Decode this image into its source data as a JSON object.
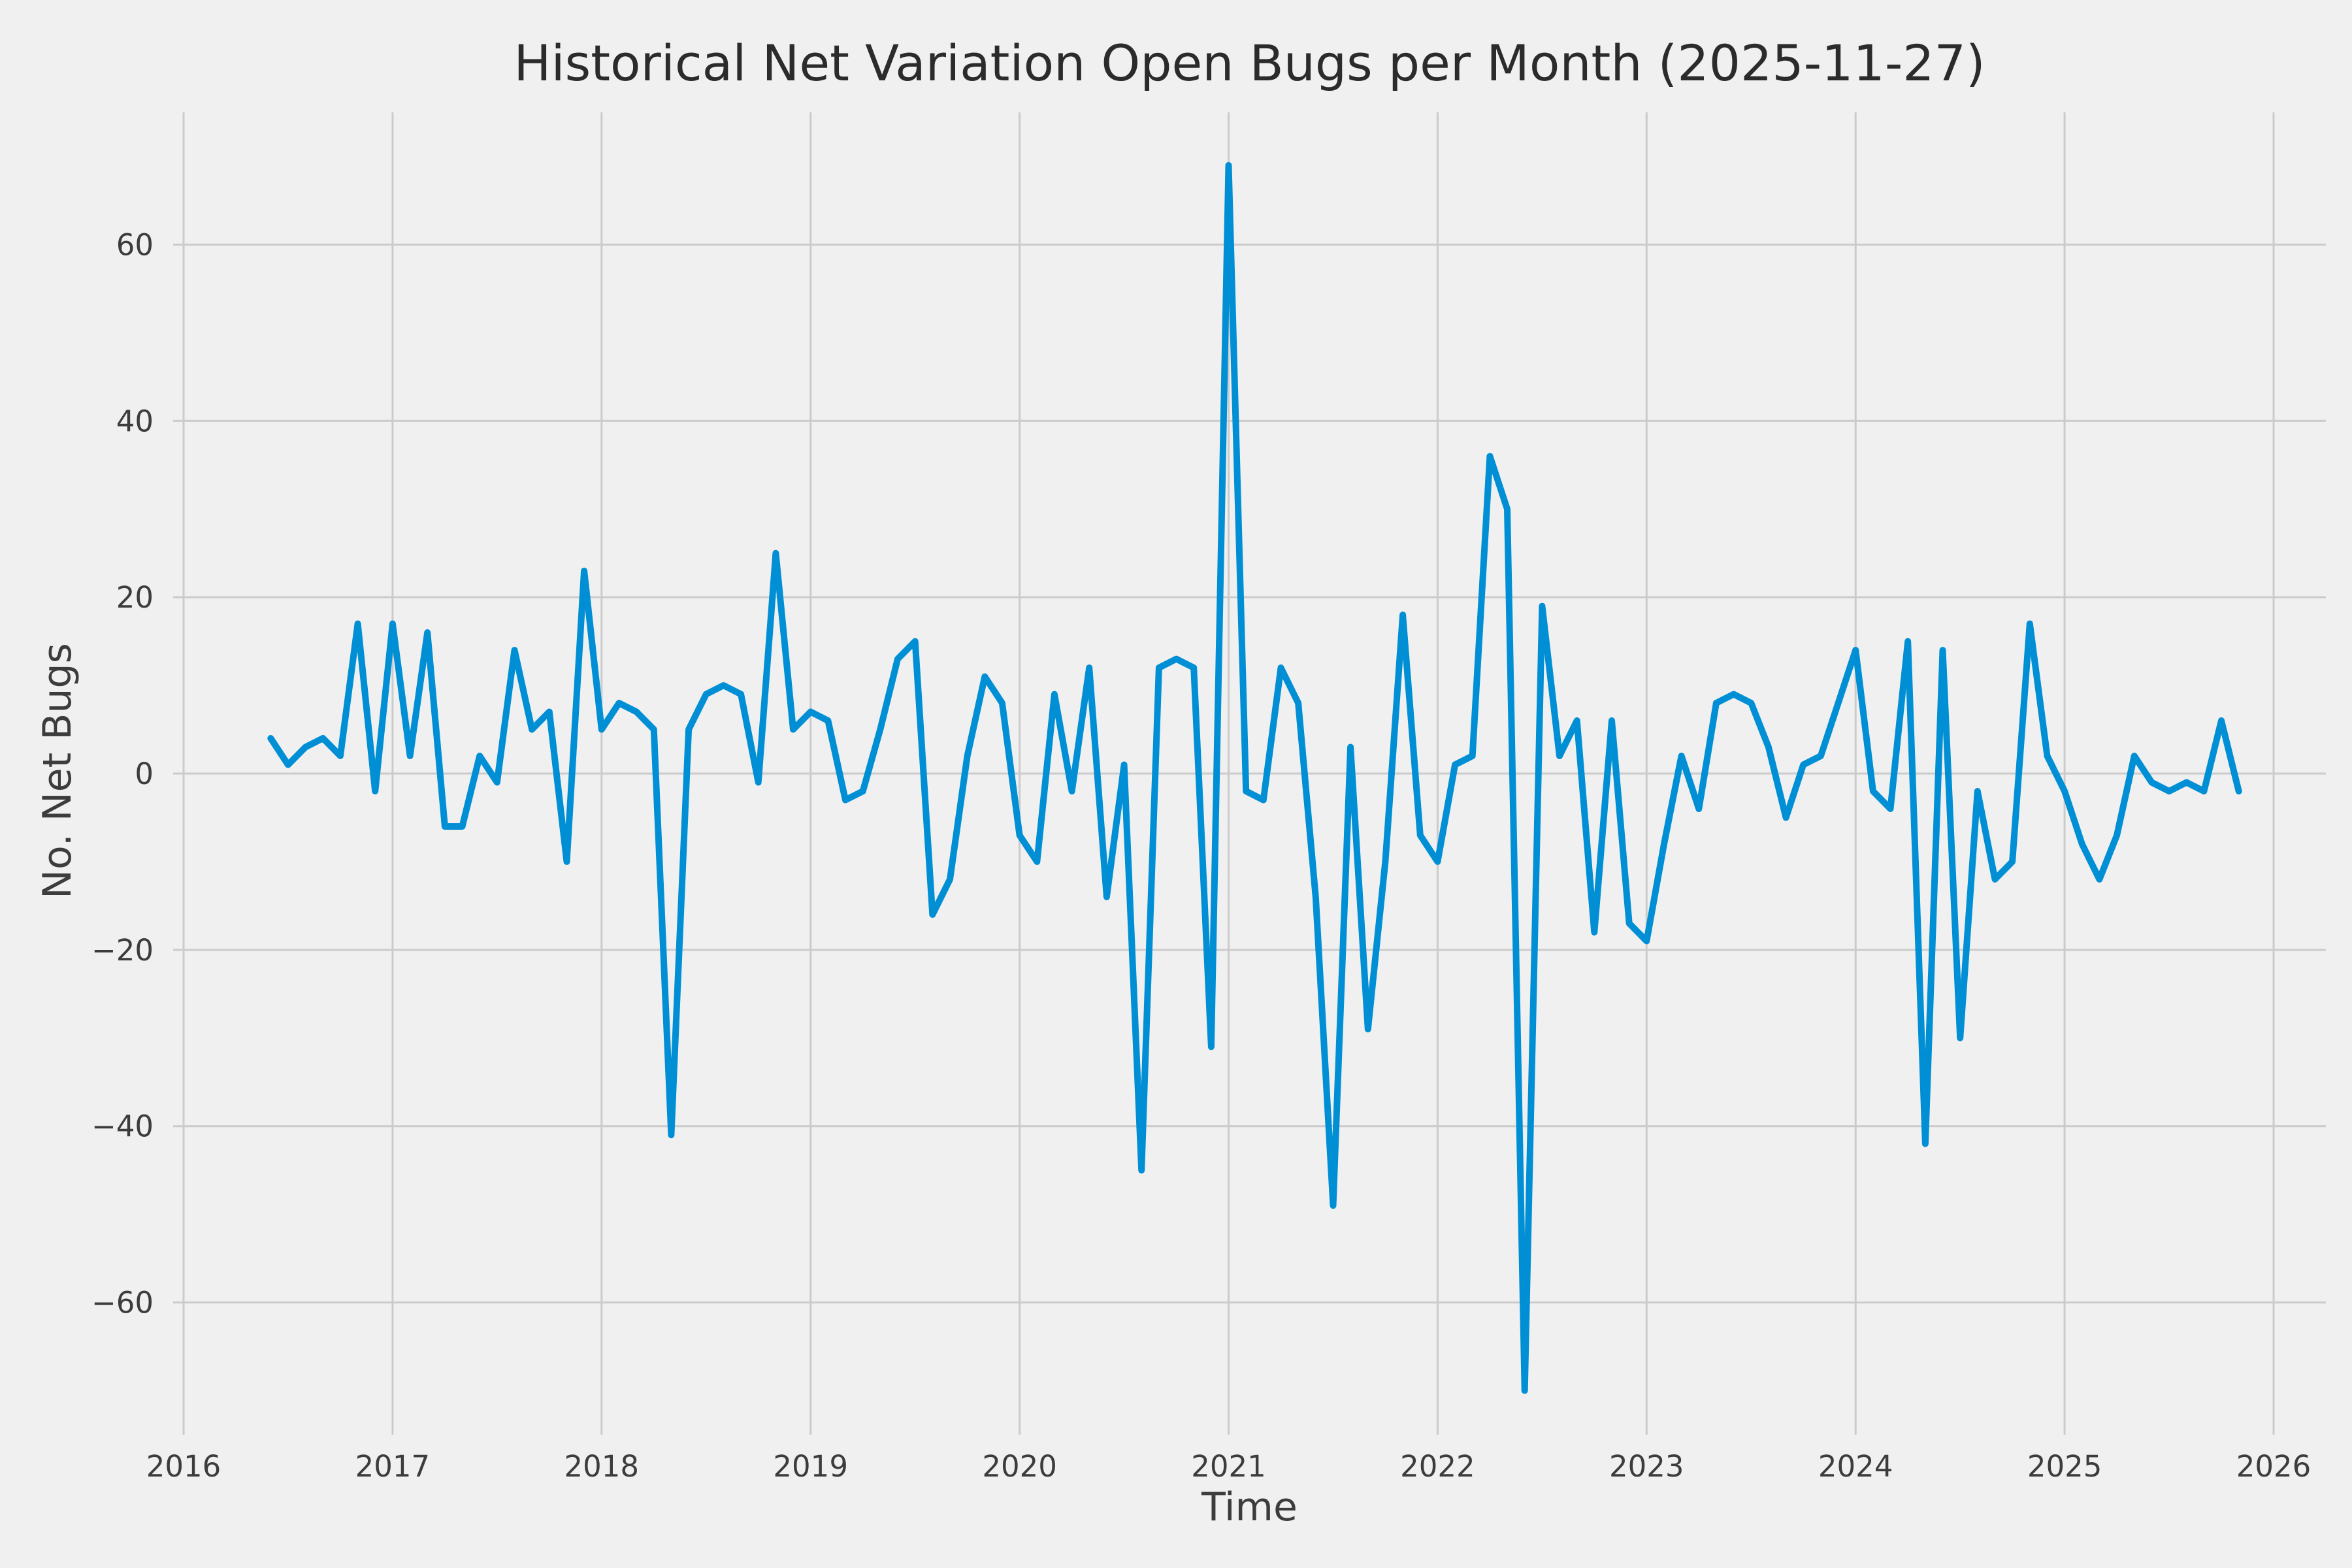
{
  "figure": {
    "title": "Historical Net Variation Open Bugs per Month (2025-11-27)",
    "xlabel": "Time",
    "ylabel": "No. Net Bugs"
  },
  "chart_data": {
    "type": "line",
    "title": "Historical Net Variation Open Bugs per Month (2025-11-27)",
    "xlabel": "Time",
    "ylabel": "No. Net Bugs",
    "series_name": "net-open-bugs-variation",
    "line_color": "#008fd5",
    "background_color": "#f0f0f0",
    "grid_color": "#cbcbcb",
    "grid": true,
    "legend": false,
    "xlim": [
      2015.95,
      2026.25
    ],
    "ylim": [
      -75,
      75
    ],
    "x_ticks": [
      2016,
      2017,
      2018,
      2019,
      2020,
      2021,
      2022,
      2023,
      2024,
      2025,
      2026
    ],
    "x_tick_labels": [
      "2016",
      "2017",
      "2018",
      "2019",
      "2020",
      "2021",
      "2022",
      "2023",
      "2024",
      "2025",
      "2026"
    ],
    "y_ticks": [
      -60,
      -40,
      -20,
      0,
      20,
      40,
      60
    ],
    "y_tick_labels": [
      "−60",
      "−40",
      "−20",
      "0",
      "20",
      "40",
      "60"
    ],
    "x": [
      "2016-06",
      "2016-07",
      "2016-08",
      "2016-09",
      "2016-10",
      "2016-11",
      "2016-12",
      "2017-01",
      "2017-02",
      "2017-03",
      "2017-04",
      "2017-05",
      "2017-06",
      "2017-07",
      "2017-08",
      "2017-09",
      "2017-10",
      "2017-11",
      "2017-12",
      "2018-01",
      "2018-02",
      "2018-03",
      "2018-04",
      "2018-05",
      "2018-06",
      "2018-07",
      "2018-08",
      "2018-09",
      "2018-10",
      "2018-11",
      "2018-12",
      "2019-01",
      "2019-02",
      "2019-03",
      "2019-04",
      "2019-05",
      "2019-06",
      "2019-07",
      "2019-08",
      "2019-09",
      "2019-10",
      "2019-11",
      "2019-12",
      "2020-01",
      "2020-02",
      "2020-03",
      "2020-04",
      "2020-05",
      "2020-06",
      "2020-07",
      "2020-08",
      "2020-09",
      "2020-10",
      "2020-11",
      "2020-12",
      "2021-01",
      "2021-02",
      "2021-03",
      "2021-04",
      "2021-05",
      "2021-06",
      "2021-07",
      "2021-08",
      "2021-09",
      "2021-10",
      "2021-11",
      "2021-12",
      "2022-01",
      "2022-02",
      "2022-03",
      "2022-04",
      "2022-05",
      "2022-06",
      "2022-07",
      "2022-08",
      "2022-09",
      "2022-10",
      "2022-11",
      "2022-12",
      "2023-01",
      "2023-02",
      "2023-03",
      "2023-04",
      "2023-05",
      "2023-06",
      "2023-07",
      "2023-08",
      "2023-09",
      "2023-10",
      "2023-11",
      "2023-12",
      "2024-01",
      "2024-02",
      "2024-03",
      "2024-04",
      "2024-05",
      "2024-06",
      "2024-07",
      "2024-08",
      "2024-09",
      "2024-10",
      "2024-11",
      "2024-12",
      "2025-01",
      "2025-02",
      "2025-03",
      "2025-04",
      "2025-05",
      "2025-06",
      "2025-07",
      "2025-08",
      "2025-09",
      "2025-10",
      "2025-11"
    ],
    "values": [
      4,
      1,
      3,
      4,
      2,
      17,
      -2,
      17,
      2,
      16,
      -6,
      -6,
      2,
      -1,
      14,
      5,
      7,
      -10,
      23,
      5,
      8,
      7,
      5,
      -41,
      5,
      9,
      10,
      9,
      -1,
      25,
      5,
      7,
      6,
      -3,
      -2,
      5,
      13,
      15,
      -16,
      -12,
      2,
      11,
      8,
      -7,
      -10,
      9,
      -2,
      12,
      -14,
      1,
      -45,
      12,
      13,
      12,
      -31,
      69,
      -2,
      -3,
      12,
      8,
      -14,
      -49,
      3,
      -29,
      -10,
      18,
      -7,
      -10,
      1,
      2,
      36,
      30,
      -70,
      19,
      2,
      6,
      -18,
      6,
      -17,
      -19,
      -8,
      2,
      -4,
      8,
      9,
      8,
      3,
      -5,
      1,
      2,
      8,
      14,
      -2,
      -4,
      15,
      -42,
      14,
      -30,
      -2,
      -12,
      -10,
      17,
      2,
      -2,
      -8,
      -12,
      -7,
      2,
      -1,
      -2,
      -1,
      -2,
      6,
      -2
    ]
  }
}
